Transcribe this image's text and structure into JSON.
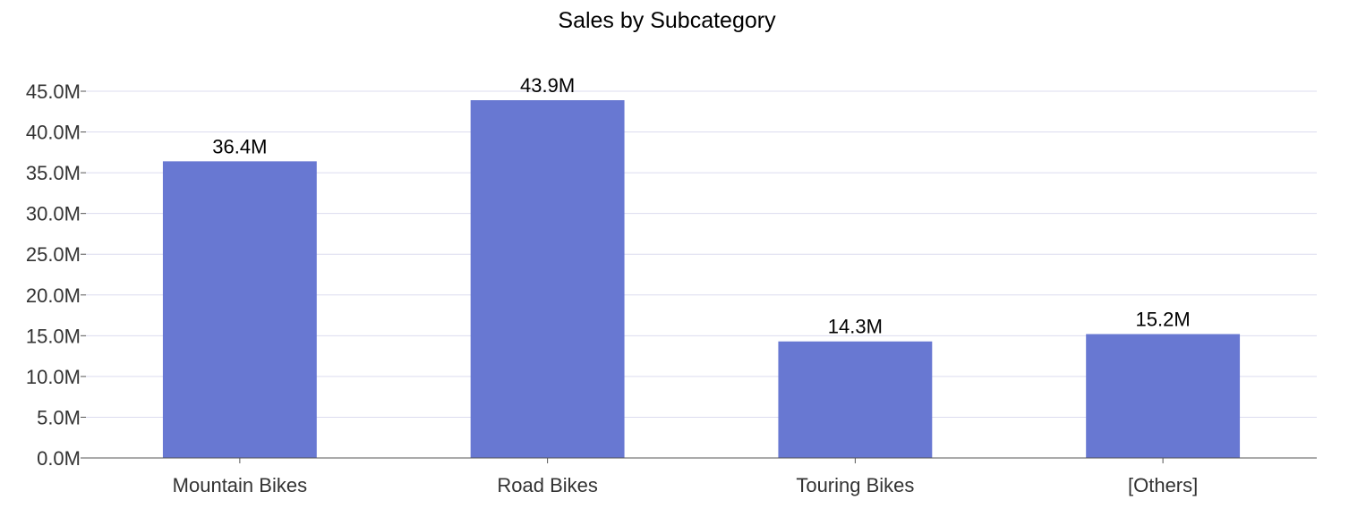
{
  "chart_data": {
    "type": "bar",
    "title": "Sales by Subcategory",
    "categories": [
      "Mountain Bikes",
      "Road Bikes",
      "Touring Bikes",
      "[Others]"
    ],
    "values": [
      36.4,
      43.9,
      14.3,
      15.2
    ],
    "value_labels": [
      "36.4M",
      "43.9M",
      "14.3M",
      "15.2M"
    ],
    "unit": "M",
    "ylim": [
      0,
      45
    ],
    "yticks": [
      0,
      5,
      10,
      15,
      20,
      25,
      30,
      35,
      40,
      45
    ],
    "ytick_labels": [
      "0.0M",
      "5.0M",
      "10.0M",
      "15.0M",
      "20.0M",
      "25.0M",
      "30.0M",
      "35.0M",
      "40.0M",
      "45.0M"
    ],
    "xlabel": "",
    "ylabel": "",
    "grid": true,
    "legend": "none",
    "colors": {
      "bar": "#6878d2",
      "grid": "#dcdcef",
      "axis": "#555555",
      "tick_text": "#333333",
      "label_text": "#000000"
    }
  }
}
